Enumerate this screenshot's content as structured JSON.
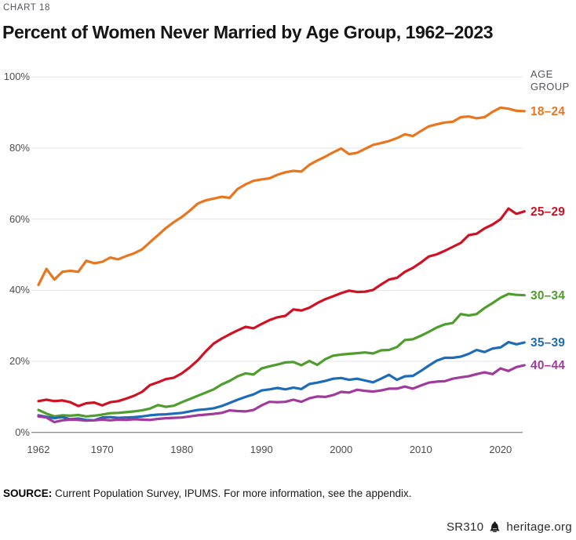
{
  "page": {
    "kicker": "CHART 18",
    "title": "Percent of Women Never Married by Age Group, 1962–2023",
    "source_label": "SOURCE:",
    "source_text": " Current Population Survey, IPUMS. For more information, see the appendix.",
    "report_id": "SR310",
    "site": "heritage.org"
  },
  "colors": {
    "gridline": "#e3e3e3",
    "zero_axis": "#8f8f8f",
    "axis_text": "#4d4d4f",
    "kicker_text": "#54565a",
    "title_text": "#151515"
  },
  "chart_data": {
    "type": "line",
    "title": "Percent of Women Never Married by Age Group, 1962–2023",
    "legend_title": "AGE GROUP",
    "legend_position": "right",
    "grid": "horizontal",
    "xlim": [
      1962,
      2023
    ],
    "ylim": [
      0,
      100
    ],
    "x_ticks": [
      1962,
      1970,
      1980,
      1990,
      2000,
      2010,
      2020
    ],
    "y_ticks": [
      "0%",
      "20%",
      "40%",
      "60%",
      "80%",
      "100%"
    ],
    "y_tick_values": [
      0,
      20,
      40,
      60,
      80,
      100
    ],
    "x": [
      1962,
      1963,
      1964,
      1965,
      1966,
      1967,
      1968,
      1969,
      1970,
      1971,
      1972,
      1973,
      1974,
      1975,
      1976,
      1977,
      1978,
      1979,
      1980,
      1981,
      1982,
      1983,
      1984,
      1985,
      1986,
      1987,
      1988,
      1989,
      1990,
      1991,
      1992,
      1993,
      1994,
      1995,
      1996,
      1997,
      1998,
      1999,
      2000,
      2001,
      2002,
      2003,
      2004,
      2005,
      2006,
      2007,
      2008,
      2009,
      2010,
      2011,
      2012,
      2013,
      2014,
      2015,
      2016,
      2017,
      2018,
      2019,
      2020,
      2021,
      2022,
      2023
    ],
    "series": [
      {
        "name": "18–24",
        "color": "#e8761f",
        "values": [
          41.5,
          46.0,
          43.0,
          45.2,
          45.5,
          45.2,
          48.3,
          47.6,
          48.0,
          49.2,
          48.7,
          49.6,
          50.4,
          51.5,
          53.5,
          55.5,
          57.5,
          59.2,
          60.6,
          62.4,
          64.4,
          65.3,
          65.8,
          66.3,
          66.0,
          68.5,
          69.8,
          70.8,
          71.2,
          71.5,
          72.5,
          73.2,
          73.6,
          73.4,
          75.3,
          76.5,
          77.6,
          78.8,
          79.9,
          78.3,
          78.7,
          79.8,
          80.9,
          81.4,
          82.0,
          82.8,
          83.9,
          83.4,
          84.8,
          86.1,
          86.7,
          87.2,
          87.4,
          88.7,
          88.9,
          88.4,
          88.7,
          90.2,
          91.4,
          91.1,
          90.5,
          90.4
        ]
      },
      {
        "name": "25–29",
        "color": "#cf1124",
        "values": [
          8.8,
          9.2,
          8.8,
          9.0,
          8.5,
          7.4,
          8.2,
          8.4,
          7.6,
          8.5,
          8.8,
          9.5,
          10.3,
          11.4,
          13.3,
          14.1,
          15.0,
          15.4,
          16.6,
          18.3,
          20.3,
          22.8,
          25.0,
          26.4,
          27.6,
          28.7,
          29.7,
          29.3,
          30.5,
          31.6,
          32.4,
          32.8,
          34.6,
          34.3,
          35.1,
          36.4,
          37.5,
          38.3,
          39.2,
          39.9,
          39.5,
          39.6,
          40.1,
          41.6,
          43.0,
          43.5,
          45.2,
          46.3,
          47.8,
          49.5,
          50.1,
          51.1,
          52.2,
          53.3,
          55.5,
          55.9,
          57.4,
          58.5,
          60.0,
          63.0,
          61.5,
          62.2
        ]
      },
      {
        "name": "30–34",
        "color": "#4e9d2d",
        "values": [
          6.3,
          5.3,
          4.5,
          4.8,
          4.7,
          4.9,
          4.5,
          4.7,
          5.0,
          5.4,
          5.5,
          5.7,
          5.9,
          6.2,
          6.7,
          7.7,
          7.2,
          7.5,
          8.5,
          9.4,
          10.3,
          11.2,
          12.1,
          13.5,
          14.5,
          15.8,
          16.6,
          16.3,
          18.0,
          18.6,
          19.1,
          19.7,
          19.8,
          18.9,
          20.1,
          19.0,
          20.6,
          21.6,
          21.9,
          22.1,
          22.3,
          22.5,
          22.2,
          23.1,
          23.2,
          24.0,
          26.0,
          26.2,
          27.2,
          28.3,
          29.5,
          30.4,
          30.8,
          33.3,
          32.9,
          33.3,
          35.0,
          36.4,
          37.9,
          39.0,
          38.7,
          38.6
        ]
      },
      {
        "name": "35–39",
        "color": "#1e6bb8",
        "values": [
          4.8,
          4.4,
          4.0,
          4.3,
          3.7,
          3.9,
          3.5,
          3.4,
          4.2,
          4.3,
          4.1,
          4.2,
          4.3,
          4.5,
          4.8,
          5.0,
          5.1,
          5.3,
          5.5,
          5.9,
          6.3,
          6.5,
          6.8,
          7.4,
          8.3,
          9.2,
          10.0,
          10.7,
          11.8,
          12.1,
          12.5,
          12.1,
          12.6,
          12.2,
          13.6,
          14.0,
          14.5,
          15.1,
          15.3,
          14.8,
          15.1,
          14.6,
          14.1,
          15.1,
          16.2,
          14.8,
          15.8,
          15.9,
          17.3,
          18.8,
          20.2,
          21.0,
          21.0,
          21.3,
          22.1,
          23.2,
          22.6,
          23.6,
          23.9,
          25.4,
          24.8,
          25.3
        ]
      },
      {
        "name": "40–44",
        "color": "#a03a9b",
        "values": [
          4.5,
          4.2,
          2.9,
          3.4,
          3.6,
          3.5,
          3.3,
          3.4,
          3.6,
          3.4,
          3.6,
          3.5,
          3.7,
          3.6,
          3.5,
          3.8,
          4.0,
          4.1,
          4.2,
          4.5,
          4.8,
          5.0,
          5.2,
          5.5,
          6.2,
          6.0,
          5.9,
          6.3,
          7.6,
          8.6,
          8.5,
          8.6,
          9.2,
          8.6,
          9.6,
          10.1,
          10.0,
          10.5,
          11.4,
          11.2,
          12.0,
          11.7,
          11.5,
          11.8,
          12.3,
          12.3,
          12.9,
          12.3,
          13.2,
          14.0,
          14.3,
          14.4,
          15.1,
          15.5,
          15.8,
          16.4,
          16.9,
          16.4,
          18.0,
          17.3,
          18.4,
          18.9
        ]
      }
    ]
  }
}
